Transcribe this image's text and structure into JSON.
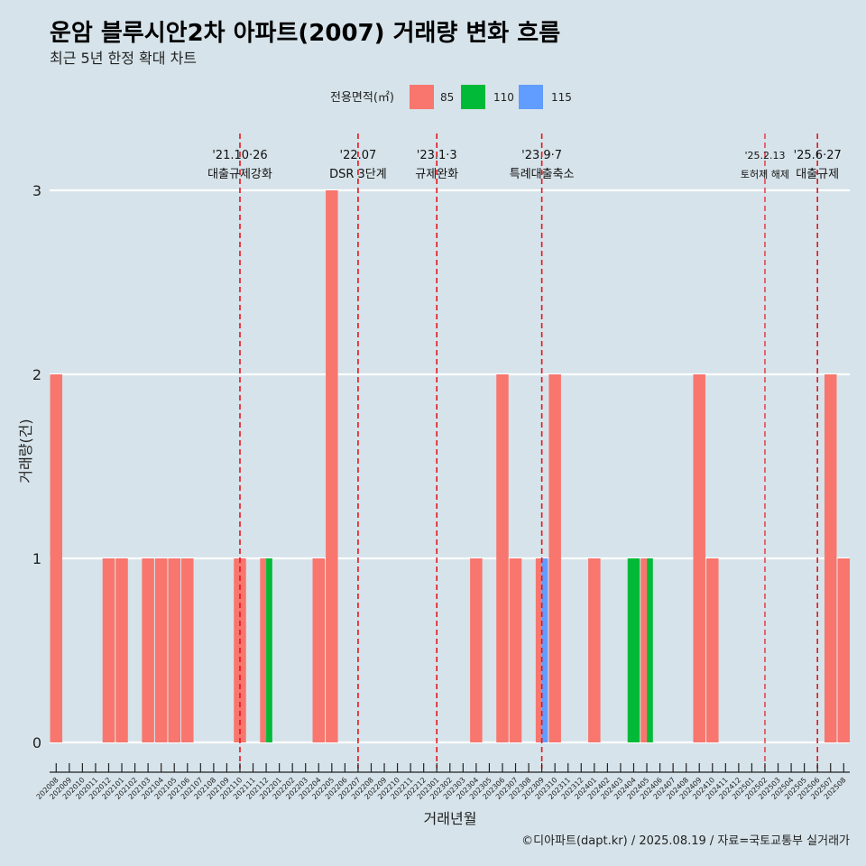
{
  "chart_data": {
    "type": "bar",
    "title": "운암 블루시안2차 아파트(2007) 거래량 변화 흐름",
    "subtitle": "최근 5년 한정 확대 차트",
    "xlabel": "거래년월",
    "ylabel": "거래량(건)",
    "ylim": [
      0,
      3
    ],
    "yticks": [
      0,
      1,
      2,
      3
    ],
    "grid": true,
    "legend": {
      "title": "전용면적(㎡)",
      "position": "top",
      "entries": [
        {
          "label": "85",
          "color": "#f8766d"
        },
        {
          "label": "110",
          "color": "#00ba38"
        },
        {
          "label": "115",
          "color": "#619cff"
        }
      ]
    },
    "categories": [
      "202008",
      "202009",
      "202010",
      "202011",
      "202012",
      "202101",
      "202102",
      "202103",
      "202104",
      "202105",
      "202106",
      "202107",
      "202108",
      "202109",
      "202110",
      "202111",
      "202112",
      "202201",
      "202202",
      "202203",
      "202204",
      "202205",
      "202206",
      "202207",
      "202208",
      "202209",
      "202210",
      "202211",
      "202212",
      "202301",
      "202302",
      "202303",
      "202304",
      "202305",
      "202306",
      "202307",
      "202308",
      "202309",
      "202310",
      "202311",
      "202312",
      "202401",
      "202402",
      "202403",
      "202404",
      "202405",
      "202406",
      "202407",
      "202408",
      "202409",
      "202410",
      "202411",
      "202412",
      "202501",
      "202502",
      "202503",
      "202504",
      "202505",
      "202506",
      "202507",
      "202508"
    ],
    "series": [
      {
        "name": "85",
        "color": "#f8766d",
        "values": [
          2,
          0,
          0,
          0,
          1,
          1,
          0,
          1,
          1,
          1,
          1,
          0,
          0,
          0,
          1,
          0,
          1,
          0,
          0,
          0,
          1,
          3,
          0,
          0,
          0,
          0,
          0,
          0,
          0,
          0,
          0,
          0,
          1,
          0,
          2,
          1,
          0,
          1,
          2,
          0,
          0,
          1,
          0,
          0,
          0,
          1,
          0,
          0,
          0,
          2,
          1,
          0,
          0,
          0,
          0,
          0,
          0,
          0,
          0,
          2,
          1
        ]
      },
      {
        "name": "110",
        "color": "#00ba38",
        "values": [
          0,
          0,
          0,
          0,
          0,
          0,
          0,
          0,
          0,
          0,
          0,
          0,
          0,
          0,
          0,
          0,
          1,
          0,
          0,
          0,
          0,
          0,
          0,
          0,
          0,
          0,
          0,
          0,
          0,
          0,
          0,
          0,
          0,
          0,
          0,
          0,
          0,
          0,
          0,
          0,
          0,
          0,
          0,
          0,
          1,
          1,
          0,
          0,
          0,
          0,
          0,
          0,
          0,
          0,
          0,
          0,
          0,
          0,
          0,
          0,
          0
        ]
      },
      {
        "name": "115",
        "color": "#619cff",
        "values": [
          0,
          0,
          0,
          0,
          0,
          0,
          0,
          0,
          0,
          0,
          0,
          0,
          0,
          0,
          0,
          0,
          0,
          0,
          0,
          0,
          0,
          0,
          0,
          0,
          0,
          0,
          0,
          0,
          0,
          0,
          0,
          0,
          0,
          0,
          0,
          0,
          0,
          1,
          0,
          0,
          0,
          0,
          0,
          0,
          0,
          0,
          0,
          0,
          0,
          0,
          0,
          0,
          0,
          0,
          0,
          0,
          0,
          0,
          0,
          0,
          0
        ]
      }
    ],
    "annotations": [
      {
        "date": "202110",
        "line1": "'21.10·26",
        "line2": "대출규제강화",
        "small": false
      },
      {
        "date": "202207",
        "line1": "'22.07",
        "line2": "DSR 3단계",
        "small": false
      },
      {
        "date": "202301",
        "line1": "'23.1·3",
        "line2": "규제완화",
        "small": false
      },
      {
        "date": "202309",
        "line1": "'23.9·7",
        "line2": "특례대출축소",
        "small": false
      },
      {
        "date": "202502",
        "line1": "'25.2.13",
        "line2": "토허제 해제",
        "small": true
      },
      {
        "date": "202506",
        "line1": "'25.6·27",
        "line2": "대출규제",
        "small": false
      }
    ],
    "caption": "©디아파트(dapt.kr) / 2025.08.19 / 자료=국토교통부 실거래가"
  }
}
